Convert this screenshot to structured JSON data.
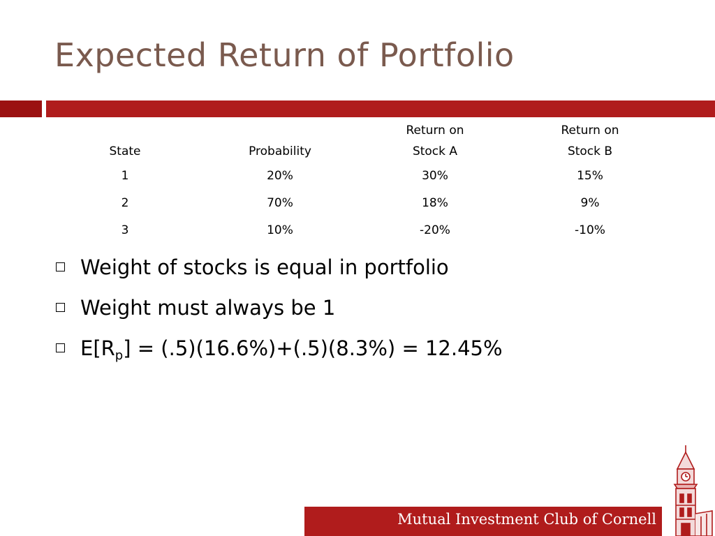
{
  "slide": {
    "title": "Expected Return of Portfolio",
    "table": {
      "headers": [
        {
          "line1": "",
          "line2": "State"
        },
        {
          "line1": "",
          "line2": "Probability"
        },
        {
          "line1": "Return on",
          "line2": "Stock A"
        },
        {
          "line1": "Return on",
          "line2": "Stock B"
        }
      ],
      "rows": [
        [
          "1",
          "20%",
          "30%",
          "15%"
        ],
        [
          "2",
          "70%",
          "18%",
          "9%"
        ],
        [
          "3",
          "10%",
          "-20%",
          "-10%"
        ]
      ]
    },
    "bullets": [
      {
        "text": "Weight of stocks is equal in portfolio"
      },
      {
        "text": "Weight must always be 1"
      },
      {
        "prefix": "E[R",
        "subscript": "p",
        "suffix": "] = (.5)(16.6%)+(.5)(8.3%) = 12.45%"
      }
    ],
    "footer": {
      "text": "Mutual Investment Club of Cornell"
    },
    "colors": {
      "title": "#7a5a4e",
      "accent_dark": "#9b1111",
      "accent": "#b01c1c"
    },
    "icons": {
      "bullet": "square-bullet-icon",
      "logo": "clock-tower-icon"
    }
  }
}
